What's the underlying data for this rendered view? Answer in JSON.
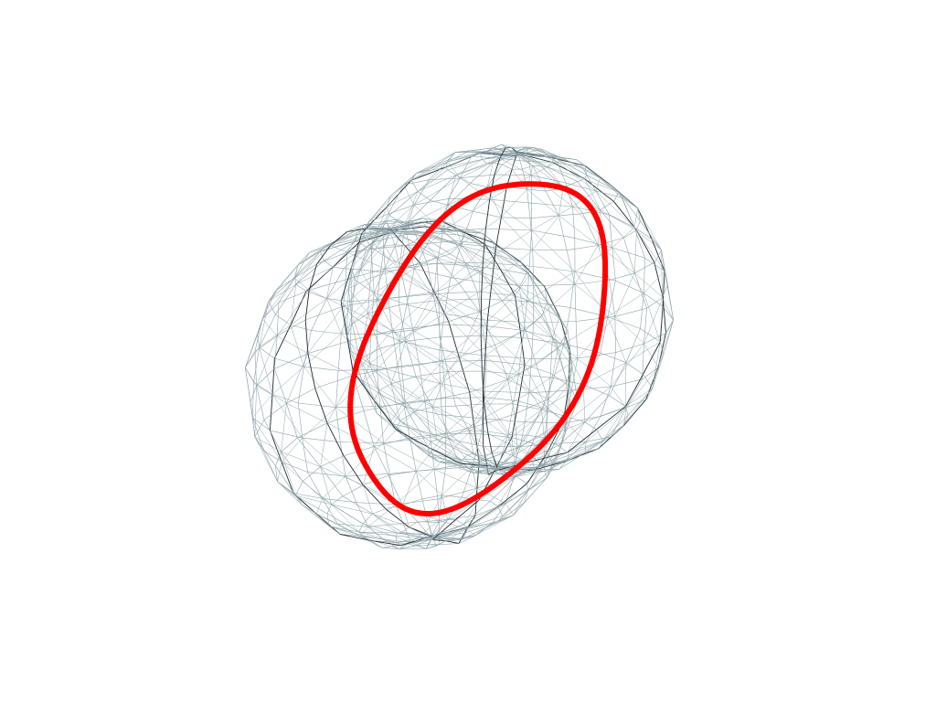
{
  "scene": {
    "background": "#ffffff",
    "mesh_color": "#8fa4aa",
    "mesh_dark_color": "#1f2a30",
    "curve_color": "#ff0000",
    "meshes": [
      {
        "name": "sphere-a",
        "tilt_deg": 12
      },
      {
        "name": "sphere-b",
        "tilt_deg": -8
      }
    ],
    "curve": {
      "name": "intersection-curve",
      "tilt_deg": -30
    }
  }
}
